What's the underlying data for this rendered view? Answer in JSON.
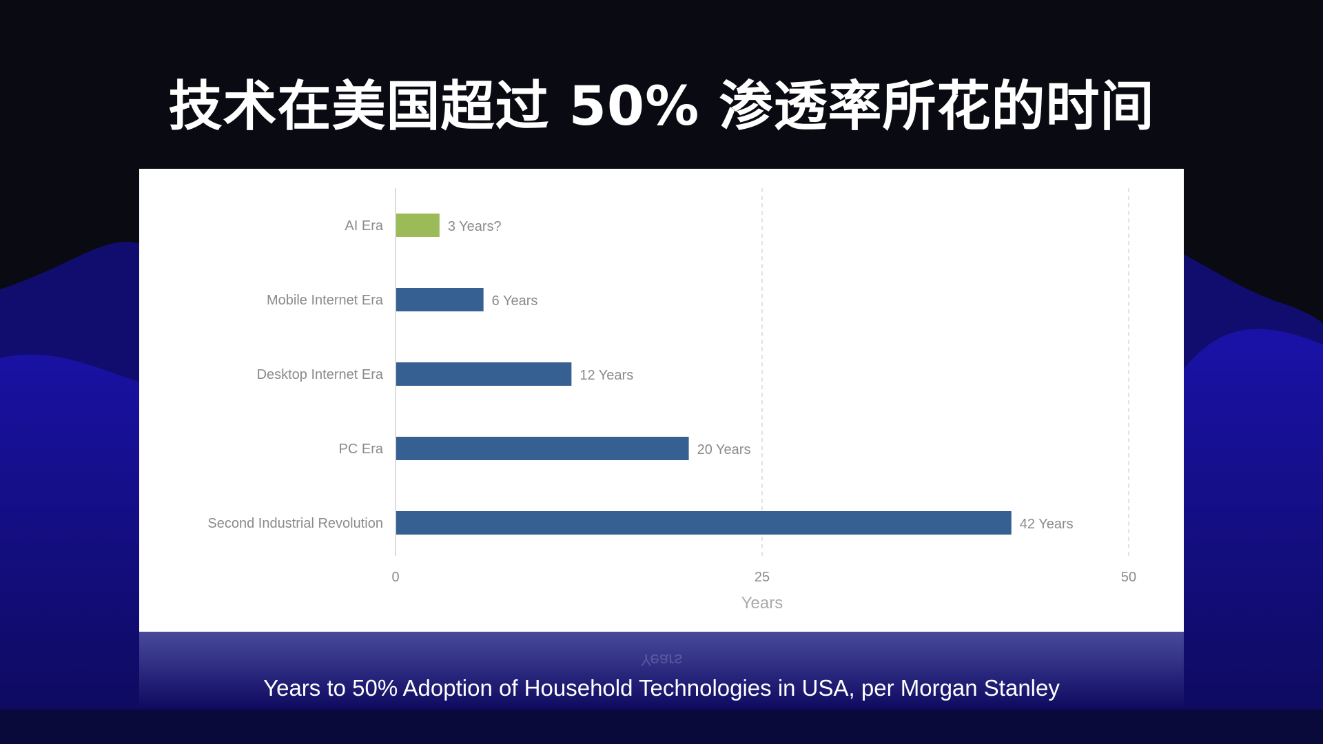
{
  "slide": {
    "title": "技术在美国超过 50% 渗透率所花的时间",
    "caption": "Years to 50% Adoption of Household Technologies in USA, per Morgan Stanley"
  },
  "colors": {
    "background": "#0a0a12",
    "wave": "#1a12a8",
    "bar_primary": "#376092",
    "bar_highlight": "#9bbb59",
    "label_text": "#8a8a8a"
  },
  "chart_data": {
    "type": "bar",
    "orientation": "horizontal",
    "categories": [
      "AI Era",
      "Mobile Internet Era",
      "Desktop Internet Era",
      "PC Era",
      "Second Industrial Revolution"
    ],
    "values": [
      3,
      6,
      12,
      20,
      42
    ],
    "data_labels": [
      "3 Years?",
      "6 Years",
      "12 Years",
      "20 Years",
      "42 Years"
    ],
    "bar_colors": [
      "#9bbb59",
      "#376092",
      "#376092",
      "#376092",
      "#376092"
    ],
    "xlabel": "Years",
    "ylabel": "",
    "xlim": [
      0,
      50
    ],
    "xticks": [
      0,
      25,
      50
    ],
    "grid": "vertical dashed"
  }
}
